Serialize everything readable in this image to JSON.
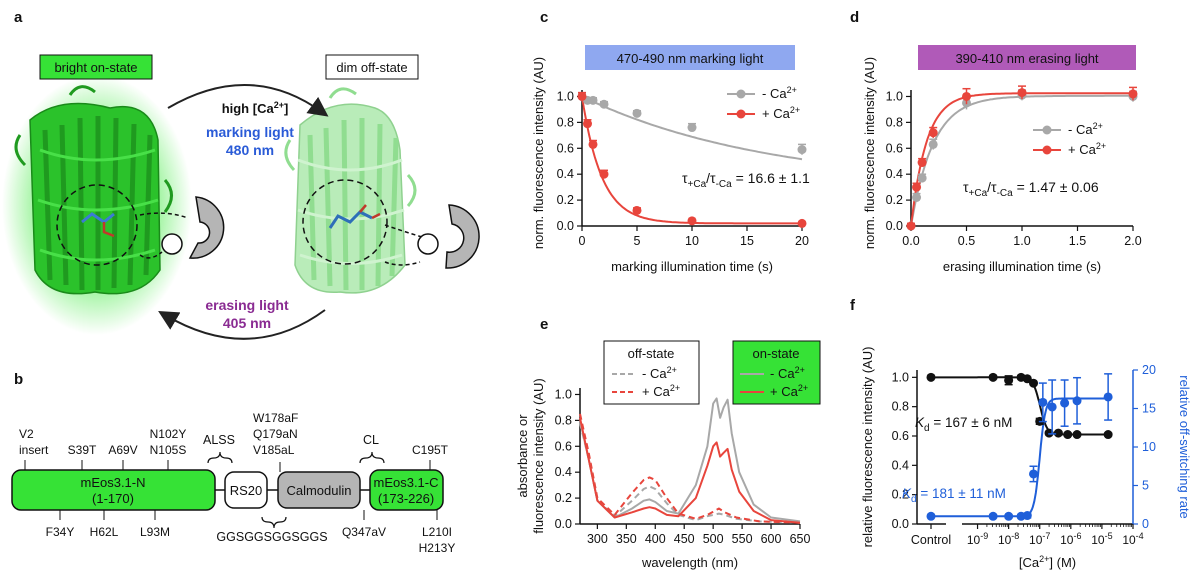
{
  "colors": {
    "green": "#36e236",
    "green_light": "#9be89b",
    "red": "#e8453c",
    "gray": "#a8a8a8",
    "blue": "#1f5fd9",
    "purple_text": "#8a2b92",
    "blue_band": "#8fa8f0",
    "purple_band": "#b05ab8",
    "calmodulin_gray": "#b5b5b5"
  },
  "panel_a": {
    "label": "a",
    "on_state": "bright on-state",
    "off_state": "dim off-state",
    "high_ca": "high [Ca",
    "high_ca_sup": "2+",
    "high_ca_end": "]",
    "marking_1": "marking light",
    "marking_2": "480 nm",
    "erasing_1": "erasing light",
    "erasing_2": "405 nm"
  },
  "panel_b": {
    "label": "b",
    "n_domain": "mEos3.1-N",
    "n_range": "(1-170)",
    "rs20": "RS20",
    "calmodulin": "Calmodulin",
    "c_domain": "mEos3.1-C",
    "c_range": "(173-226)",
    "alss": "ALSS",
    "cl": "CL",
    "linker": "GGSGGSGGSGGS",
    "top_mutations": [
      "V2",
      "insert",
      "S39T",
      "A69V",
      "N102Y",
      "N105S",
      "W178aF",
      "Q179aN",
      "V185aL",
      "C195T"
    ],
    "bottom_mutations": [
      "F34Y",
      "H62L",
      "L93M",
      "Q347aV",
      "L210I",
      "H213Y"
    ]
  },
  "panel_c": {
    "label": "c",
    "band": "470-490 nm marking light",
    "legend_minus": "- Ca",
    "legend_plus": "+ Ca",
    "annotation": "τ+Ca/τ-Ca = 16.6 ± 1.1",
    "annotation_a": "τ",
    "annotation_b": "+Ca",
    "annotation_c": "/τ",
    "annotation_d": "-Ca",
    "annotation_e": " = 16.6 ± 1.1"
  },
  "panel_d": {
    "label": "d",
    "band": "390-410 nm erasing light",
    "legend_minus": "- Ca",
    "legend_plus": "+ Ca",
    "annotation_a": "τ",
    "annotation_b": "+Ca",
    "annotation_c": "/τ",
    "annotation_d": "-Ca",
    "annotation_e": " = 1.47 ± 0.06"
  },
  "panel_e": {
    "label": "e",
    "off_title": "off-state",
    "on_title": "on-state",
    "legend_minus": "- Ca",
    "legend_plus": "+ Ca",
    "sup": "2+"
  },
  "panel_f": {
    "label": "f",
    "kd_black_a": "K",
    "kd_black_b": "d",
    "kd_black_c": " = 167 ± 6 nM",
    "kd_blue_a": "K",
    "kd_blue_b": "d",
    "kd_blue_c": " = 181 ± 11 nM",
    "control": "Control"
  },
  "chart_data": [
    {
      "panel": "c",
      "type": "scatter",
      "title": "470-490 nm marking light",
      "xlabel": "marking illumination time (s)",
      "ylabel": "norm. fluorescence intensity (AU)",
      "xlim": [
        0,
        20
      ],
      "ylim": [
        0,
        1.05
      ],
      "xticks": [
        0,
        5,
        10,
        15,
        20
      ],
      "yticks": [
        0.0,
        0.2,
        0.4,
        0.6,
        0.8,
        1.0
      ],
      "xticklabels": [
        "0",
        "5",
        "10",
        "15",
        "20"
      ],
      "yticklabels": [
        "0.0",
        "0.2",
        "0.4",
        "0.6",
        "0.8",
        "1.0"
      ],
      "series": [
        {
          "name": "- Ca2+",
          "color": "#a8a8a8",
          "x": [
            0,
            0.5,
            1,
            2,
            5,
            10,
            20
          ],
          "y": [
            1.0,
            0.97,
            0.97,
            0.94,
            0.87,
            0.76,
            0.59
          ],
          "err": [
            0.02,
            0.02,
            0.02,
            0.02,
            0.02,
            0.03,
            0.04
          ],
          "fit": "exp_decay_with_offset"
        },
        {
          "name": "+ Ca2+",
          "color": "#e8453c",
          "x": [
            0,
            0.5,
            1,
            2,
            5,
            10,
            20
          ],
          "y": [
            1.0,
            0.79,
            0.63,
            0.4,
            0.12,
            0.04,
            0.02
          ],
          "err": [
            0.03,
            0.03,
            0.03,
            0.03,
            0.02,
            0.01,
            0.01
          ],
          "fit": "exp_decay"
        }
      ]
    },
    {
      "panel": "d",
      "type": "scatter",
      "title": "390-410 nm erasing light",
      "xlabel": "erasing illumination time (s)",
      "ylabel": "norm. fluorescence intensity (AU)",
      "xlim": [
        0,
        2
      ],
      "ylim": [
        0,
        1.05
      ],
      "xticks": [
        0.0,
        0.5,
        1.0,
        1.5,
        2.0
      ],
      "yticks": [
        0.0,
        0.2,
        0.4,
        0.6,
        0.8,
        1.0
      ],
      "xticklabels": [
        "0.0",
        "0.5",
        "1.0",
        "1.5",
        "2.0"
      ],
      "yticklabels": [
        "0.0",
        "0.2",
        "0.4",
        "0.6",
        "0.8",
        "1.0"
      ],
      "series": [
        {
          "name": "- Ca2+",
          "color": "#a8a8a8",
          "x": [
            0,
            0.05,
            0.1,
            0.2,
            0.5,
            1.0,
            2.0
          ],
          "y": [
            0.0,
            0.22,
            0.37,
            0.63,
            0.95,
            1.01,
            1.0
          ],
          "err": [
            0.02,
            0.03,
            0.03,
            0.04,
            0.05,
            0.04,
            0.04
          ],
          "fit": "exp_rise"
        },
        {
          "name": "+ Ca2+",
          "color": "#e8453c",
          "x": [
            0,
            0.05,
            0.1,
            0.2,
            0.5,
            1.0,
            2.0
          ],
          "y": [
            0.0,
            0.3,
            0.49,
            0.72,
            1.0,
            1.03,
            1.02
          ],
          "err": [
            0.02,
            0.03,
            0.03,
            0.04,
            0.06,
            0.05,
            0.05
          ],
          "fit": "exp_rise"
        }
      ]
    },
    {
      "panel": "e",
      "type": "line",
      "xlabel": "wavelength (nm)",
      "ylabel_1": "absorbance or",
      "ylabel_2": "fluorescence intensity (AU)",
      "xlim": [
        270,
        650
      ],
      "ylim": [
        0,
        1.05
      ],
      "xticks": [
        300,
        350,
        400,
        450,
        500,
        550,
        600,
        650
      ],
      "yticks": [
        0.0,
        0.2,
        0.4,
        0.6,
        0.8,
        1.0
      ],
      "xticklabels": [
        "300",
        "350",
        "400",
        "450",
        "500",
        "550",
        "600",
        "650"
      ],
      "yticklabels": [
        "0.0",
        "0.2",
        "0.4",
        "0.6",
        "0.8",
        "1.0"
      ],
      "series": [
        {
          "name": "off-state - Ca2+",
          "color": "#a8a8a8",
          "dashed": true,
          "x": [
            270,
            285,
            300,
            330,
            360,
            380,
            390,
            400,
            420,
            440,
            470,
            490,
            510,
            520,
            540,
            580,
            650
          ],
          "y": [
            0.78,
            0.5,
            0.18,
            0.06,
            0.18,
            0.27,
            0.29,
            0.27,
            0.16,
            0.07,
            0.03,
            0.06,
            0.08,
            0.07,
            0.04,
            0.02,
            0.01
          ]
        },
        {
          "name": "off-state + Ca2+",
          "color": "#e8453c",
          "dashed": true,
          "x": [
            270,
            285,
            300,
            330,
            360,
            380,
            390,
            400,
            420,
            440,
            470,
            490,
            510,
            520,
            540,
            580,
            650
          ],
          "y": [
            0.85,
            0.55,
            0.2,
            0.07,
            0.24,
            0.34,
            0.36,
            0.34,
            0.2,
            0.08,
            0.04,
            0.07,
            0.12,
            0.09,
            0.05,
            0.02,
            0.01
          ]
        },
        {
          "name": "on-state - Ca2+",
          "color": "#a8a8a8",
          "dashed": false,
          "x": [
            270,
            285,
            300,
            330,
            360,
            380,
            390,
            400,
            420,
            440,
            470,
            490,
            500,
            506,
            512,
            518,
            525,
            532,
            545,
            570,
            600,
            650
          ],
          "y": [
            0.8,
            0.5,
            0.18,
            0.05,
            0.12,
            0.18,
            0.19,
            0.17,
            0.1,
            0.08,
            0.3,
            0.6,
            0.93,
            0.97,
            0.82,
            0.9,
            0.96,
            0.7,
            0.4,
            0.15,
            0.05,
            0.02
          ]
        },
        {
          "name": "on-state + Ca2+",
          "color": "#e8453c",
          "dashed": false,
          "x": [
            270,
            285,
            300,
            330,
            360,
            380,
            390,
            400,
            420,
            440,
            470,
            490,
            500,
            506,
            512,
            518,
            525,
            532,
            545,
            570,
            600,
            650
          ],
          "y": [
            0.82,
            0.5,
            0.18,
            0.05,
            0.09,
            0.12,
            0.13,
            0.12,
            0.07,
            0.06,
            0.2,
            0.45,
            0.6,
            0.63,
            0.52,
            0.55,
            0.58,
            0.42,
            0.25,
            0.1,
            0.03,
            0.01
          ]
        }
      ]
    },
    {
      "panel": "f",
      "type": "scatter",
      "xlabel": "[Ca2+] (M)",
      "ylabel_left": "relative fluorescence intensity (AU)",
      "ylabel_right": "relative off-switching rate",
      "xscale": "log",
      "xlim_log10": [
        -9.5,
        -4
      ],
      "xticks_log10": [
        -9,
        -8,
        -7,
        -6,
        -5,
        -4
      ],
      "xtick_exponents": [
        "-9",
        "-8",
        "-7",
        "-6",
        "-5",
        "-4"
      ],
      "ylim_left": [
        0,
        1.05
      ],
      "yticks_left": [
        0.0,
        0.2,
        0.4,
        0.6,
        0.8,
        1.0
      ],
      "yticklabels_left": [
        "0.0",
        "0.2",
        "0.4",
        "0.6",
        "0.8",
        "1.0"
      ],
      "ylim_right": [
        0,
        20
      ],
      "yticks_right": [
        0,
        5,
        10,
        15,
        20
      ],
      "yticklabels_right": [
        "0",
        "5",
        "10",
        "15",
        "20"
      ],
      "series": [
        {
          "name": "fluorescence",
          "axis": "left",
          "color": "#111111",
          "control": 1.0,
          "x_log10": [
            -8.5,
            -8.0,
            -7.6,
            -7.4,
            -7.2,
            -7.0,
            -6.7,
            -6.4,
            -6.1,
            -5.8,
            -4.8
          ],
          "y": [
            1.0,
            0.98,
            1.0,
            0.99,
            0.96,
            0.7,
            0.62,
            0.62,
            0.61,
            0.61,
            0.61
          ],
          "err": [
            0.01,
            0.03,
            0.01,
            0.01,
            0.01,
            0.02,
            0.01,
            0.01,
            0.01,
            0.01,
            0.01
          ]
        },
        {
          "name": "off-switching rate",
          "axis": "right",
          "color": "#1f5fd9",
          "control": 1.0,
          "x_log10": [
            -8.5,
            -8.0,
            -7.6,
            -7.4,
            -7.2,
            -6.9,
            -6.6,
            -6.2,
            -5.8,
            -4.8
          ],
          "y": [
            1.0,
            1.0,
            1.0,
            1.1,
            6.5,
            15.8,
            15.2,
            15.7,
            16.0,
            16.5
          ],
          "err": [
            0.2,
            0.2,
            0.2,
            0.3,
            1.0,
            2.5,
            3.5,
            3.0,
            3.0,
            3.0
          ]
        }
      ]
    }
  ]
}
